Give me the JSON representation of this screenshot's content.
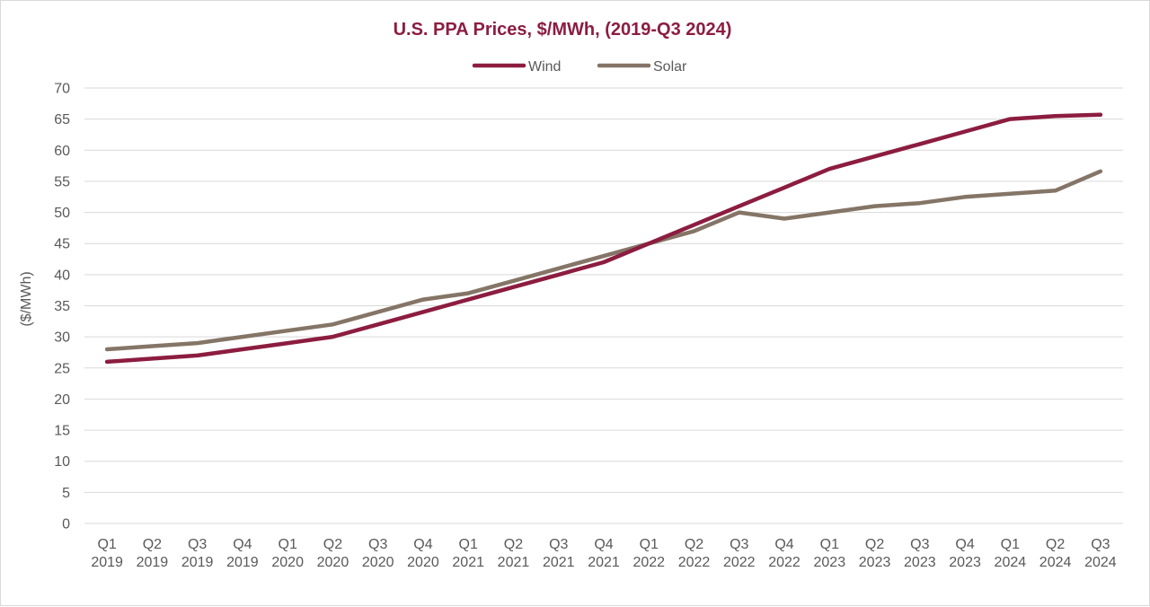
{
  "chart_data": {
    "type": "line",
    "title": "U.S. PPA Prices, $/MWh, (2019-Q3 2024)",
    "xlabel": "",
    "ylabel": "($/MWh)",
    "ylim": [
      0,
      70
    ],
    "yticks": [
      "0",
      "5",
      "10",
      "15",
      "20",
      "25",
      "30",
      "35",
      "40",
      "45",
      "50",
      "55",
      "60",
      "65",
      "70"
    ],
    "grid": true,
    "legend_position": "top-center",
    "categories": [
      {
        "q": "Q1",
        "y": "2019"
      },
      {
        "q": "Q2",
        "y": "2019"
      },
      {
        "q": "Q3",
        "y": "2019"
      },
      {
        "q": "Q4",
        "y": "2019"
      },
      {
        "q": "Q1",
        "y": "2020"
      },
      {
        "q": "Q2",
        "y": "2020"
      },
      {
        "q": "Q3",
        "y": "2020"
      },
      {
        "q": "Q4",
        "y": "2020"
      },
      {
        "q": "Q1",
        "y": "2021"
      },
      {
        "q": "Q2",
        "y": "2021"
      },
      {
        "q": "Q3",
        "y": "2021"
      },
      {
        "q": "Q4",
        "y": "2021"
      },
      {
        "q": "Q1",
        "y": "2022"
      },
      {
        "q": "Q2",
        "y": "2022"
      },
      {
        "q": "Q3",
        "y": "2022"
      },
      {
        "q": "Q4",
        "y": "2022"
      },
      {
        "q": "Q1",
        "y": "2023"
      },
      {
        "q": "Q2",
        "y": "2023"
      },
      {
        "q": "Q3",
        "y": "2023"
      },
      {
        "q": "Q4",
        "y": "2023"
      },
      {
        "q": "Q1",
        "y": "2024"
      },
      {
        "q": "Q2",
        "y": "2024"
      },
      {
        "q": "Q3",
        "y": "2024"
      }
    ],
    "series": [
      {
        "name": "Wind",
        "color": "#8c1d40",
        "values": [
          26,
          26.5,
          27,
          28,
          29,
          30,
          32,
          34,
          36,
          38,
          40,
          42,
          45,
          48,
          51,
          54,
          57,
          59,
          61,
          63,
          65,
          65.5,
          65.7
        ]
      },
      {
        "name": "Solar",
        "color": "#857567",
        "values": [
          28,
          28.5,
          29,
          30,
          31,
          32,
          34,
          36,
          37,
          39,
          41,
          43,
          45,
          47,
          50,
          49,
          50,
          51,
          51.5,
          52.5,
          53,
          53.5,
          56.6
        ]
      }
    ]
  }
}
